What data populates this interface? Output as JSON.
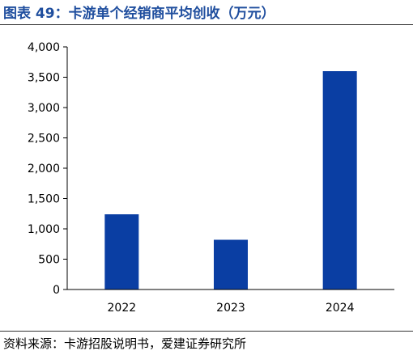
{
  "header": {
    "title": "图表 49：卡游单个经销商平均创收（万元）"
  },
  "footer": {
    "source": "资料来源：卡游招股说明书，爱建证券研究所"
  },
  "colors": {
    "bar": "#0a3ea3",
    "title": "#1f4e9e"
  },
  "chart_data": {
    "type": "bar",
    "categories": [
      "2022",
      "2023",
      "2024"
    ],
    "values": [
      1240,
      820,
      3600
    ],
    "ylim": [
      0,
      4000
    ],
    "yticks": [
      0,
      500,
      1000,
      1500,
      2000,
      2500,
      3000,
      3500,
      4000
    ],
    "ytick_labels": [
      "0",
      "500",
      "1,000",
      "1,500",
      "2,000",
      "2,500",
      "3,000",
      "3,500",
      "4,000"
    ],
    "grid": false
  }
}
